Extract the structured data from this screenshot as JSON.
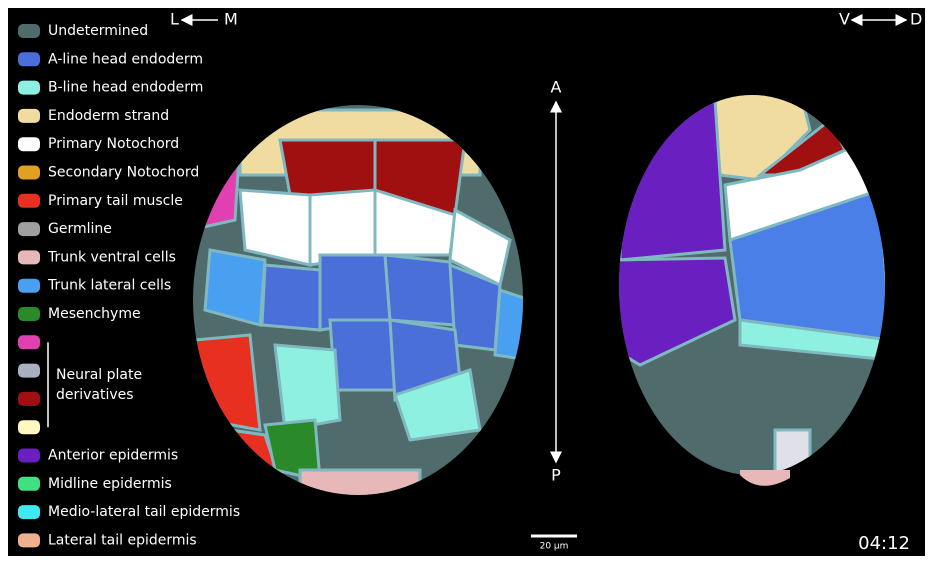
{
  "legend": [
    {
      "label": "Undetermined",
      "color": "#4f6b6b"
    },
    {
      "label": "A-line head endoderm",
      "color": "#4a6fd8"
    },
    {
      "label": "B-line head endoderm",
      "color": "#8ef0e0"
    },
    {
      "label": "Endoderm strand",
      "color": "#f0dca0"
    },
    {
      "label": "Primary Notochord",
      "color": "#ffffff"
    },
    {
      "label": "Secondary Notochord",
      "color": "#e0a020"
    },
    {
      "label": "Primary tail muscle",
      "color": "#e83020"
    },
    {
      "label": "Germline",
      "color": "#a0a0a0"
    },
    {
      "label": "Trunk ventral cells",
      "color": "#e8b8b8"
    },
    {
      "label": "Trunk lateral cells",
      "color": "#4aa0f0"
    },
    {
      "label": "Mesenchyme",
      "color": "#2a8a2a"
    }
  ],
  "neural_plate": {
    "label_lines": [
      "Neural plate",
      "derivatives"
    ],
    "colors": [
      "#e040b0",
      "#a8b0c0",
      "#a01010",
      "#fff8c0"
    ]
  },
  "legend_tail": [
    {
      "label": "Anterior epidermis",
      "color": "#6a20c0"
    },
    {
      "label": "Midline epidermis",
      "color": "#40e080"
    },
    {
      "label": "Medio-lateral tail epidermis",
      "color": "#40e8f0"
    },
    {
      "label": "Lateral tail epidermis",
      "color": "#f0b090"
    }
  ],
  "axes": {
    "left": "L",
    "medial": "M",
    "ventral": "V",
    "dorsal": "D",
    "anterior": "A",
    "posterior": "P"
  },
  "scale_bar": "20 µm",
  "time": "04:12"
}
